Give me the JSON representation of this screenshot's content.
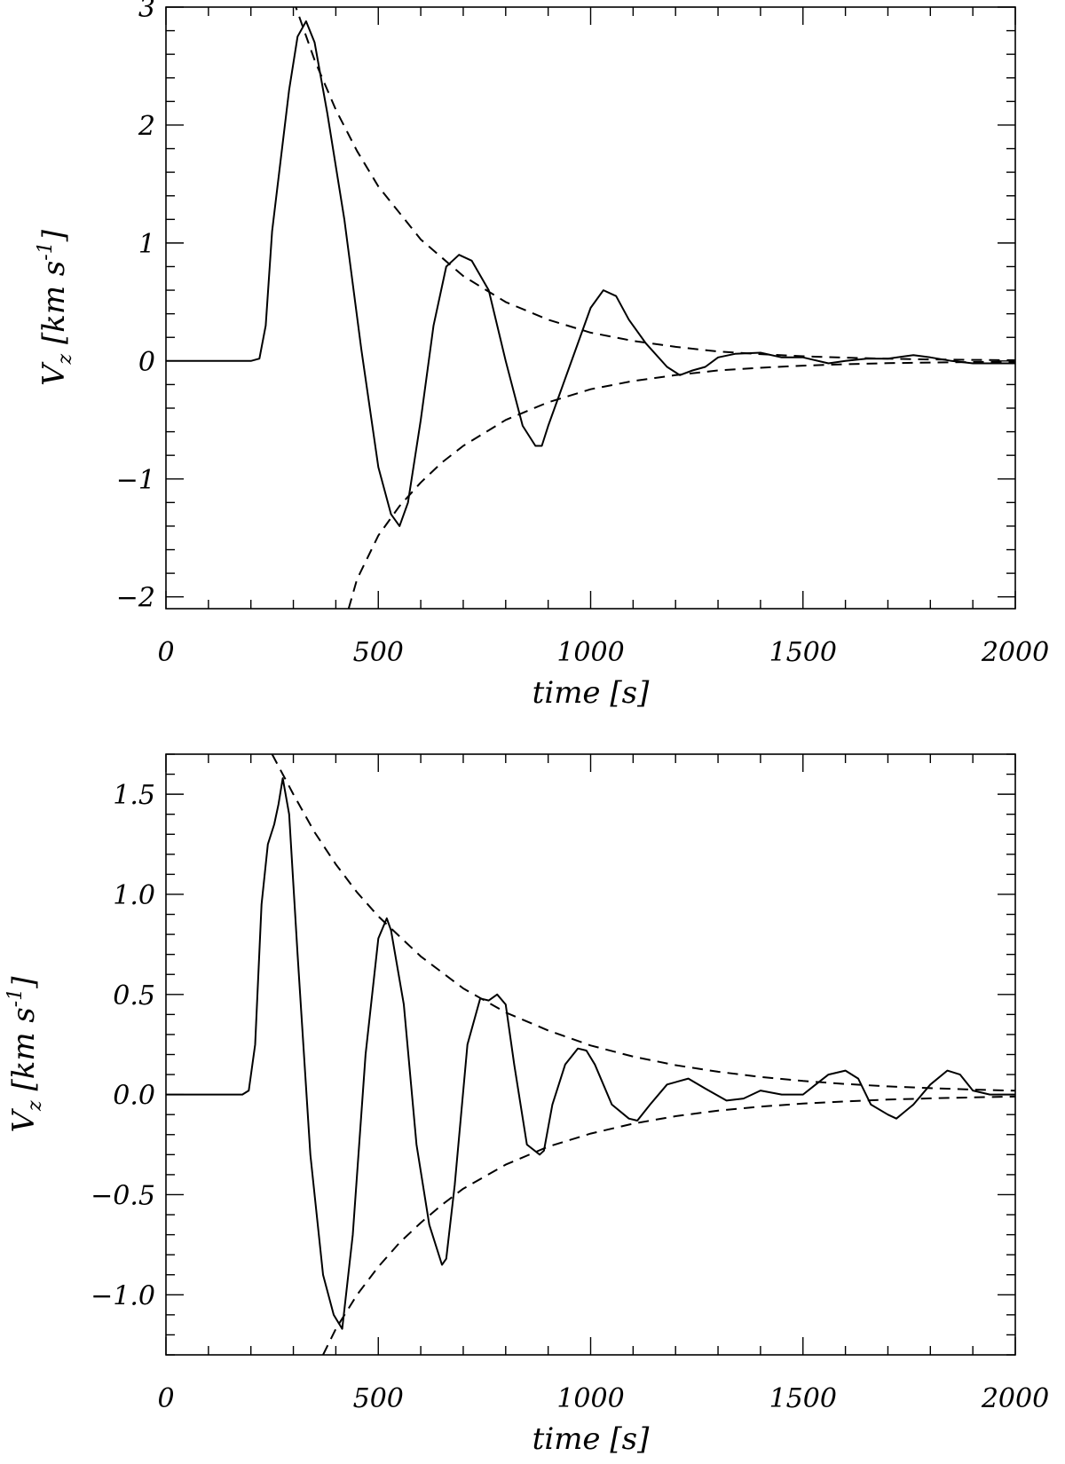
{
  "chart_data": [
    {
      "type": "line",
      "title": "",
      "xlabel": "time [s]",
      "ylabel": "V_z [km s^-1]",
      "ylabel_parts": {
        "sym": "V",
        "sub": "z",
        "units": "[km s",
        "exp": "-1",
        "close": "]"
      },
      "xlim": [
        0,
        2000
      ],
      "ylim": [
        -2.1,
        3.0
      ],
      "xticks": [
        0,
        500,
        1000,
        1500,
        2000
      ],
      "xtick_labels": [
        "0",
        "500",
        "1000",
        "1500",
        "2000"
      ],
      "yticks": [
        -2,
        -1,
        0,
        1,
        2,
        3
      ],
      "ytick_labels": [
        "−2",
        "−1",
        "0",
        "1",
        "2",
        "3"
      ],
      "grid": false,
      "series": [
        {
          "style": "solid",
          "x": [
            0,
            200,
            220,
            235,
            250,
            270,
            290,
            310,
            330,
            350,
            380,
            420,
            460,
            500,
            530,
            550,
            570,
            600,
            630,
            660,
            690,
            720,
            760,
            800,
            840,
            870,
            885,
            900,
            950,
            1000,
            1030,
            1060,
            1090,
            1130,
            1180,
            1210,
            1240,
            1270,
            1300,
            1340,
            1400,
            1450,
            1500,
            1560,
            1600,
            1650,
            1700,
            1760,
            1800,
            1850,
            1900,
            1950,
            2000
          ],
          "y": [
            0,
            0,
            0.02,
            0.3,
            1.1,
            1.7,
            2.3,
            2.75,
            2.88,
            2.7,
            2.1,
            1.2,
            0.1,
            -0.9,
            -1.3,
            -1.4,
            -1.2,
            -0.5,
            0.3,
            0.8,
            0.9,
            0.85,
            0.6,
            0.0,
            -0.55,
            -0.72,
            -0.72,
            -0.55,
            -0.05,
            0.45,
            0.6,
            0.55,
            0.35,
            0.15,
            -0.05,
            -0.12,
            -0.08,
            -0.05,
            0.03,
            0.06,
            0.07,
            0.03,
            0.03,
            -0.02,
            0.0,
            0.02,
            0.02,
            0.05,
            0.03,
            0.0,
            -0.02,
            -0.02,
            -0.02
          ]
        },
        {
          "style": "dashed",
          "x": [
            300,
            350,
            400,
            450,
            500,
            600,
            700,
            800,
            900,
            1000,
            1100,
            1200,
            1300,
            1400,
            1500,
            1600,
            1700,
            1800,
            1900,
            2000
          ],
          "y": [
            3.06,
            2.55,
            2.13,
            1.78,
            1.48,
            1.03,
            0.72,
            0.5,
            0.35,
            0.24,
            0.17,
            0.12,
            0.08,
            0.058,
            0.04,
            0.028,
            0.019,
            0.013,
            0.009,
            0.006
          ]
        },
        {
          "style": "dashed",
          "x": [
            430,
            450,
            500,
            550,
            600,
            650,
            700,
            800,
            900,
            1000,
            1100,
            1200,
            1300,
            1400,
            1500,
            1600,
            1700,
            1800,
            1900,
            2000
          ],
          "y": [
            -2.1,
            -1.85,
            -1.48,
            -1.23,
            -1.03,
            -0.86,
            -0.72,
            -0.5,
            -0.35,
            -0.24,
            -0.17,
            -0.12,
            -0.08,
            -0.058,
            -0.04,
            -0.028,
            -0.019,
            -0.013,
            -0.009,
            -0.006
          ]
        }
      ]
    },
    {
      "type": "line",
      "title": "",
      "xlabel": "time [s]",
      "ylabel": "V_z [km s^-1]",
      "ylabel_parts": {
        "sym": "V",
        "sub": "z",
        "units": "[km s",
        "exp": "-1",
        "close": "]"
      },
      "xlim": [
        0,
        2000
      ],
      "ylim": [
        -1.3,
        1.7
      ],
      "xticks": [
        0,
        500,
        1000,
        1500,
        2000
      ],
      "xtick_labels": [
        "0",
        "500",
        "1000",
        "1500",
        "2000"
      ],
      "yticks": [
        -1.0,
        -0.5,
        0.0,
        0.5,
        1.0,
        1.5
      ],
      "ytick_labels": [
        "−1.0",
        "−0.5",
        "0.0",
        "0.5",
        "1.0",
        "1.5"
      ],
      "grid": false,
      "series": [
        {
          "style": "solid",
          "x": [
            0,
            180,
            195,
            210,
            225,
            240,
            255,
            265,
            275,
            290,
            310,
            340,
            370,
            395,
            415,
            440,
            470,
            500,
            520,
            530,
            560,
            590,
            620,
            650,
            660,
            680,
            710,
            740,
            760,
            780,
            800,
            820,
            850,
            880,
            890,
            910,
            940,
            970,
            990,
            1010,
            1050,
            1090,
            1110,
            1140,
            1180,
            1230,
            1270,
            1320,
            1360,
            1400,
            1450,
            1500,
            1530,
            1560,
            1600,
            1630,
            1660,
            1700,
            1720,
            1760,
            1800,
            1840,
            1870,
            1900,
            1940,
            2000
          ],
          "y": [
            0,
            0,
            0.02,
            0.25,
            0.95,
            1.25,
            1.35,
            1.45,
            1.58,
            1.4,
            0.7,
            -0.3,
            -0.9,
            -1.1,
            -1.17,
            -0.7,
            0.2,
            0.78,
            0.88,
            0.82,
            0.45,
            -0.25,
            -0.65,
            -0.85,
            -0.82,
            -0.45,
            0.25,
            0.48,
            0.47,
            0.5,
            0.45,
            0.15,
            -0.25,
            -0.3,
            -0.28,
            -0.05,
            0.15,
            0.23,
            0.22,
            0.15,
            -0.05,
            -0.12,
            -0.13,
            -0.05,
            0.05,
            0.08,
            0.03,
            -0.03,
            -0.02,
            0.02,
            0.0,
            0.0,
            0.05,
            0.1,
            0.12,
            0.08,
            -0.05,
            -0.1,
            -0.12,
            -0.05,
            0.05,
            0.12,
            0.1,
            0.02,
            0.0,
            0.0
          ]
        },
        {
          "style": "dashed",
          "x": [
            250,
            300,
            350,
            400,
            450,
            500,
            600,
            700,
            800,
            900,
            1000,
            1100,
            1200,
            1300,
            1400,
            1500,
            1600,
            1700,
            1800,
            1900,
            2000
          ],
          "y": [
            1.7,
            1.5,
            1.31,
            1.15,
            1.01,
            0.89,
            0.69,
            0.53,
            0.41,
            0.32,
            0.245,
            0.19,
            0.147,
            0.114,
            0.088,
            0.068,
            0.053,
            0.041,
            0.032,
            0.025,
            0.019
          ]
        },
        {
          "style": "dashed",
          "x": [
            370,
            400,
            450,
            500,
            550,
            600,
            650,
            700,
            800,
            900,
            1000,
            1100,
            1200,
            1300,
            1400,
            1500,
            1600,
            1700,
            1800,
            1900,
            2000
          ],
          "y": [
            -1.3,
            -1.17,
            -1.0,
            -0.86,
            -0.74,
            -0.64,
            -0.55,
            -0.47,
            -0.35,
            -0.26,
            -0.195,
            -0.145,
            -0.108,
            -0.08,
            -0.06,
            -0.045,
            -0.034,
            -0.025,
            -0.019,
            -0.014,
            -0.01
          ]
        }
      ]
    }
  ]
}
